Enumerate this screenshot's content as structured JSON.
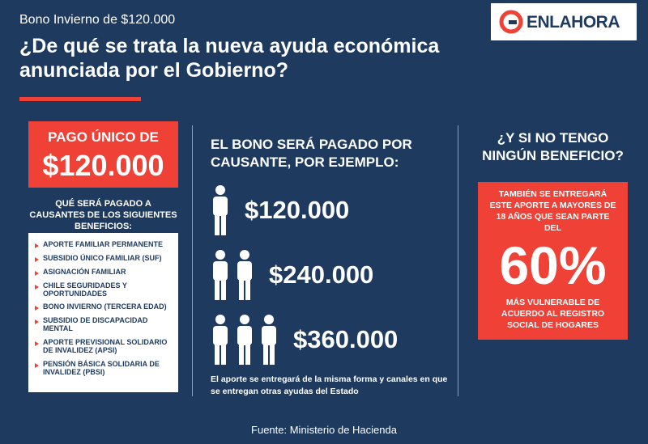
{
  "header": {
    "kicker": "Bono Invierno de $120.000",
    "title_lines": [
      "¿De qué se trata la nueva ayuda económica",
      "anunciada por el Gobierno?"
    ]
  },
  "logo": "ENLAHORA",
  "left": {
    "label": "PAGO ÚNICO DE",
    "amount": "$120.000",
    "subtitle": "QUÉ SERÁ PAGADO A CAUSANTES DE LOS SIGUIENTES BENEFICIOS:",
    "benefits": [
      "APORTE FAMILIAR PERMANENTE",
      "SUBSIDIO ÚNICO FAMILIAR (SUF)",
      "ASIGNACIÓN FAMILIAR",
      "CHILE SEGURIDADES Y OPORTUNIDADES",
      "BONO INVIERNO (TERCERA EDAD)",
      "SUBSIDIO DE DISCAPACIDAD MENTAL",
      "APORTE PREVISIONAL SOLIDARIO DE INVALIDEZ (APSI)",
      "PENSIÓN BÁSICA SOLIDARIA DE INVALIDEZ (PBSI)"
    ]
  },
  "middle": {
    "title": "EL BONO SERÁ PAGADO POR CAUSANTE, POR EJEMPLO:",
    "examples": [
      "$120.000",
      "$240.000",
      "$360.000"
    ],
    "note": "El aporte se entregará de la misma forma y canales en que se entregan otras ayudas del Estado"
  },
  "right": {
    "title": "¿Y SI NO TENGO NINGÚN BENEFICIO?",
    "text_top": "TAMBIÉN SE ENTREGARÁ ESTE APORTE A MAYORES DE 18 AÑOS QUE SEAN PARTE DEL",
    "percentage": "60%",
    "text_bottom": "MÁS VULNERABLE DE ACUERDO AL REGISTRO SOCIAL DE HOGARES"
  },
  "footer": {
    "source": "Fuente: Ministerio de Hacienda"
  }
}
